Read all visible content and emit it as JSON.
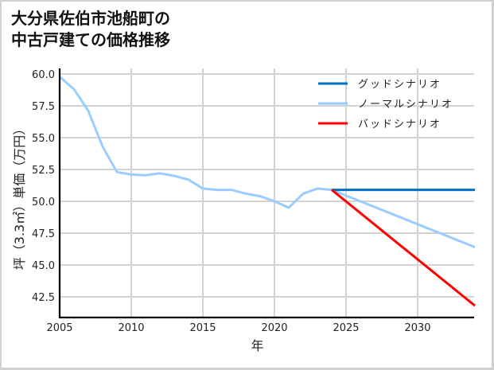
{
  "title_line1": "大分県佐伯市池船町の",
  "title_line2": "中古戸建ての価格推移",
  "chart_data": {
    "type": "line",
    "title": "大分県佐伯市池船町の中古戸建ての価格推移",
    "xlabel": "年",
    "ylabel": "坪（3.3㎡）単価（万円）",
    "xlim": [
      2005,
      2034
    ],
    "ylim": [
      40.9,
      60.4
    ],
    "x_ticks": [
      2005,
      2010,
      2015,
      2020,
      2025,
      2030
    ],
    "x_tick_labels": [
      "2005",
      "2010",
      "2015",
      "2020",
      "2025",
      "2030"
    ],
    "y_ticks": [
      42.5,
      45.0,
      47.5,
      50.0,
      52.5,
      55.0,
      57.5,
      60.0
    ],
    "y_tick_labels": [
      "42.5",
      "45.0",
      "47.5",
      "50.0",
      "52.5",
      "55.0",
      "57.5",
      "60.0"
    ],
    "grid": true,
    "legend_position": "upper right",
    "series": [
      {
        "name": "グッドシナリオ",
        "color": "#0070c8",
        "x": [
          2024,
          2034
        ],
        "values": [
          50.9,
          50.9
        ]
      },
      {
        "name": "ノーマルシナリオ",
        "color": "#99ccff",
        "x": [
          2005,
          2006,
          2007,
          2008,
          2009,
          2010,
          2011,
          2012,
          2013,
          2014,
          2015,
          2016,
          2017,
          2018,
          2019,
          2020,
          2021,
          2022,
          2023,
          2024,
          2034
        ],
        "values": [
          59.8,
          58.8,
          57.1,
          54.3,
          52.3,
          52.1,
          52.05,
          52.2,
          52.0,
          51.7,
          51.0,
          50.9,
          50.9,
          50.6,
          50.4,
          50.0,
          49.5,
          50.6,
          51.0,
          50.9,
          46.4
        ]
      },
      {
        "name": "バッドシナリオ",
        "color": "#ff0000",
        "x": [
          2024,
          2034
        ],
        "values": [
          50.9,
          41.8
        ]
      }
    ]
  },
  "legend": [
    {
      "label": "グッドシナリオ",
      "color": "#0070c8"
    },
    {
      "label": "ノーマルシナリオ",
      "color": "#99ccff"
    },
    {
      "label": "バッドシナリオ",
      "color": "#ff0000"
    }
  ]
}
